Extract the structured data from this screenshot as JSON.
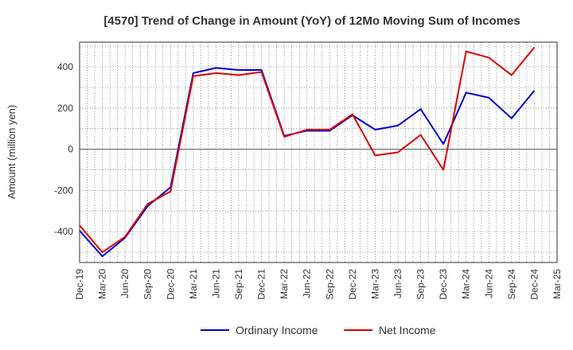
{
  "chart_data": {
    "type": "line",
    "title": "[4570]  Trend of Change in Amount (YoY) of 12Mo Moving Sum of Incomes",
    "ylabel": "Amount (million yen)",
    "xlabel": "",
    "categories": [
      "Dec-19",
      "Mar-20",
      "Jun-20",
      "Sep-20",
      "Dec-20",
      "Mar-21",
      "Jun-21",
      "Sep-21",
      "Dec-21",
      "Mar-22",
      "Jun-22",
      "Sep-22",
      "Dec-22",
      "Mar-23",
      "Jun-23",
      "Sep-23",
      "Dec-23",
      "Mar-24",
      "Jun-24",
      "Sep-24",
      "Dec-24",
      "Mar-25"
    ],
    "ylim": [
      -550,
      520
    ],
    "yticks": [
      -400,
      -200,
      0,
      200,
      400
    ],
    "ytick_labels": [
      "-400",
      "-200",
      "0",
      "200",
      "400"
    ],
    "grid": true,
    "legend_position": "bottom",
    "series": [
      {
        "name": "Ordinary Income",
        "color": "#0000cc",
        "values": [
          -395,
          -520,
          -430,
          -275,
          -185,
          370,
          395,
          385,
          385,
          65,
          90,
          90,
          165,
          95,
          115,
          195,
          25,
          275,
          250,
          150,
          285,
          null
        ]
      },
      {
        "name": "Net Income",
        "color": "#dd0000",
        "values": [
          -370,
          -500,
          -425,
          -265,
          -205,
          355,
          370,
          360,
          375,
          60,
          95,
          95,
          170,
          -30,
          -15,
          70,
          -100,
          475,
          445,
          360,
          495,
          null
        ]
      }
    ]
  }
}
